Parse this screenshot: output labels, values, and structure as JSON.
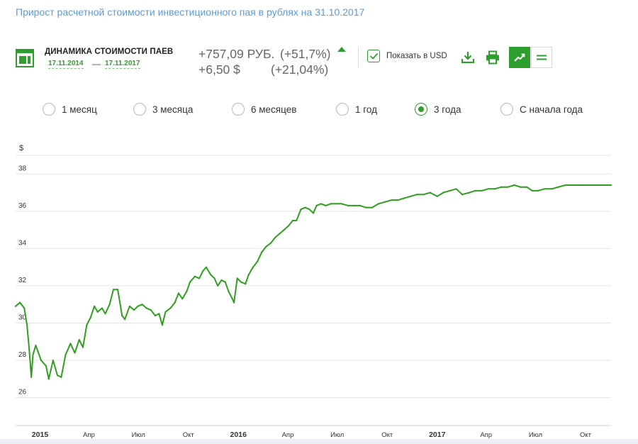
{
  "page": {
    "subtitle": "Прирост расчетной стоимости инвестиционного пая в рублях на 31.10.2017"
  },
  "header": {
    "title": "ДИНАМИКА СТОИМОСТИ ПАЕВ",
    "date_from": "17.11.2014",
    "date_separator": "—",
    "date_to": "17.11.2017",
    "perf_rub_abs": "+757,09 РУБ.",
    "perf_rub_pct": "(+51,7%)",
    "perf_usd_abs": "+6,50 $",
    "perf_usd_pct": "(+21,04%)",
    "trend_icon": "up-arrow-icon",
    "show_usd_label": "Показать в USD",
    "show_usd_checked": true,
    "tools": [
      "download-icon",
      "print-icon",
      "line-chart-icon",
      "table-view-icon"
    ],
    "active_view": "line-chart"
  },
  "periods": {
    "options": [
      "1 месяц",
      "3 месяца",
      "6 месяцев",
      "1 год",
      "3 года",
      "С начала года"
    ],
    "selected": "3 года"
  },
  "colors": {
    "accent": "#2e9e2e",
    "line": "#2f9e1f",
    "subtitle": "#5b9bd5",
    "grid": "#e4e4e4"
  },
  "chart_data": {
    "type": "line",
    "ylabel": "$",
    "grid": true,
    "ylim": [
      24.5,
      39
    ],
    "yticks": [
      26,
      28,
      30,
      32,
      34,
      36,
      38
    ],
    "xlim": [
      "2014-11-17",
      "2017-11-17"
    ],
    "xticks": [
      {
        "date": "2015-01-01",
        "label": "2015",
        "bold": true
      },
      {
        "date": "2015-04-01",
        "label": "Апр",
        "bold": false
      },
      {
        "date": "2015-07-01",
        "label": "Июл",
        "bold": false
      },
      {
        "date": "2015-10-01",
        "label": "Окт",
        "bold": false
      },
      {
        "date": "2016-01-01",
        "label": "2016",
        "bold": true
      },
      {
        "date": "2016-04-01",
        "label": "Апр",
        "bold": false
      },
      {
        "date": "2016-07-01",
        "label": "Июл",
        "bold": false
      },
      {
        "date": "2016-10-01",
        "label": "Окт",
        "bold": false
      },
      {
        "date": "2017-01-01",
        "label": "2017",
        "bold": true
      },
      {
        "date": "2017-04-01",
        "label": "Апр",
        "bold": false
      },
      {
        "date": "2017-07-01",
        "label": "Июл",
        "bold": false
      },
      {
        "date": "2017-10-01",
        "label": "Окт",
        "bold": false
      }
    ],
    "series": [
      {
        "points": [
          [
            "2014-11-17",
            30.9
          ],
          [
            "2014-11-25",
            31.1
          ],
          [
            "2014-12-03",
            30.8
          ],
          [
            "2014-12-08",
            29.9
          ],
          [
            "2014-12-12",
            28.6
          ],
          [
            "2014-12-16",
            27.1
          ],
          [
            "2014-12-19",
            28.3
          ],
          [
            "2014-12-24",
            28.8
          ],
          [
            "2015-01-03",
            28.0
          ],
          [
            "2015-01-12",
            27.7
          ],
          [
            "2015-01-17",
            27.0
          ],
          [
            "2015-01-25",
            28.0
          ],
          [
            "2015-02-02",
            27.2
          ],
          [
            "2015-02-09",
            27.1
          ],
          [
            "2015-02-17",
            28.3
          ],
          [
            "2015-02-26",
            28.9
          ],
          [
            "2015-03-06",
            28.4
          ],
          [
            "2015-03-14",
            29.1
          ],
          [
            "2015-03-21",
            28.7
          ],
          [
            "2015-03-28",
            29.9
          ],
          [
            "2015-04-04",
            30.3
          ],
          [
            "2015-04-11",
            30.9
          ],
          [
            "2015-04-17",
            30.6
          ],
          [
            "2015-04-25",
            30.8
          ],
          [
            "2015-05-01",
            30.5
          ],
          [
            "2015-05-09",
            31.0
          ],
          [
            "2015-05-16",
            31.8
          ],
          [
            "2015-05-24",
            31.8
          ],
          [
            "2015-06-01",
            30.4
          ],
          [
            "2015-06-06",
            30.2
          ],
          [
            "2015-06-15",
            30.9
          ],
          [
            "2015-06-23",
            30.7
          ],
          [
            "2015-06-30",
            30.9
          ],
          [
            "2015-07-08",
            31.0
          ],
          [
            "2015-07-16",
            30.8
          ],
          [
            "2015-07-24",
            30.7
          ],
          [
            "2015-08-01",
            30.4
          ],
          [
            "2015-08-08",
            30.5
          ],
          [
            "2015-08-14",
            29.9
          ],
          [
            "2015-08-20",
            30.6
          ],
          [
            "2015-08-29",
            30.8
          ],
          [
            "2015-09-06",
            31.1
          ],
          [
            "2015-09-13",
            31.6
          ],
          [
            "2015-09-20",
            31.3
          ],
          [
            "2015-09-28",
            31.7
          ],
          [
            "2015-10-04",
            32.2
          ],
          [
            "2015-10-13",
            32.5
          ],
          [
            "2015-10-21",
            32.4
          ],
          [
            "2015-10-28",
            32.8
          ],
          [
            "2015-11-03",
            33.0
          ],
          [
            "2015-11-11",
            32.6
          ],
          [
            "2015-11-18",
            32.4
          ],
          [
            "2015-11-24",
            32.0
          ],
          [
            "2015-12-01",
            32.3
          ],
          [
            "2015-12-08",
            32.2
          ],
          [
            "2015-12-14",
            31.7
          ],
          [
            "2015-12-21",
            31.3
          ],
          [
            "2015-12-24",
            31.1
          ],
          [
            "2015-12-30",
            32.4
          ],
          [
            "2016-01-06",
            32.2
          ],
          [
            "2016-01-14",
            32.1
          ],
          [
            "2016-01-20",
            32.6
          ],
          [
            "2016-01-28",
            33.0
          ],
          [
            "2016-02-05",
            33.3
          ],
          [
            "2016-02-13",
            33.8
          ],
          [
            "2016-02-21",
            34.1
          ],
          [
            "2016-03-01",
            34.3
          ],
          [
            "2016-03-09",
            34.6
          ],
          [
            "2016-03-17",
            34.8
          ],
          [
            "2016-03-25",
            35.0
          ],
          [
            "2016-04-02",
            35.2
          ],
          [
            "2016-04-10",
            35.5
          ],
          [
            "2016-04-17",
            35.5
          ],
          [
            "2016-04-25",
            36.1
          ],
          [
            "2016-05-03",
            36.2
          ],
          [
            "2016-05-11",
            36.1
          ],
          [
            "2016-05-18",
            35.9
          ],
          [
            "2016-05-24",
            36.3
          ],
          [
            "2016-06-01",
            36.4
          ],
          [
            "2016-06-10",
            36.3
          ],
          [
            "2016-06-19",
            36.4
          ],
          [
            "2016-06-28",
            36.4
          ],
          [
            "2016-07-09",
            36.4
          ],
          [
            "2016-07-21",
            36.3
          ],
          [
            "2016-08-01",
            36.3
          ],
          [
            "2016-08-12",
            36.3
          ],
          [
            "2016-08-23",
            36.2
          ],
          [
            "2016-09-03",
            36.2
          ],
          [
            "2016-09-15",
            36.4
          ],
          [
            "2016-09-27",
            36.5
          ],
          [
            "2016-10-09",
            36.6
          ],
          [
            "2016-10-21",
            36.6
          ],
          [
            "2016-11-01",
            36.7
          ],
          [
            "2016-11-13",
            36.8
          ],
          [
            "2016-11-25",
            36.9
          ],
          [
            "2016-12-07",
            36.9
          ],
          [
            "2016-12-19",
            37.0
          ],
          [
            "2017-01-01",
            36.8
          ],
          [
            "2017-01-12",
            37.0
          ],
          [
            "2017-01-24",
            37.1
          ],
          [
            "2017-02-05",
            37.2
          ],
          [
            "2017-02-16",
            36.9
          ],
          [
            "2017-03-01",
            37.0
          ],
          [
            "2017-03-12",
            37.1
          ],
          [
            "2017-03-24",
            37.1
          ],
          [
            "2017-04-05",
            37.2
          ],
          [
            "2017-04-17",
            37.2
          ],
          [
            "2017-04-29",
            37.3
          ],
          [
            "2017-05-11",
            37.3
          ],
          [
            "2017-05-23",
            37.4
          ],
          [
            "2017-06-03",
            37.3
          ],
          [
            "2017-06-15",
            37.3
          ],
          [
            "2017-06-25",
            37.1
          ],
          [
            "2017-07-05",
            37.1
          ],
          [
            "2017-07-18",
            37.2
          ],
          [
            "2017-07-31",
            37.2
          ],
          [
            "2017-08-12",
            37.3
          ],
          [
            "2017-08-25",
            37.4
          ],
          [
            "2017-09-06",
            37.4
          ],
          [
            "2017-09-18",
            37.4
          ],
          [
            "2017-09-30",
            37.4
          ],
          [
            "2017-10-12",
            37.4
          ],
          [
            "2017-10-24",
            37.4
          ],
          [
            "2017-11-05",
            37.4
          ],
          [
            "2017-11-17",
            37.4
          ]
        ]
      }
    ]
  }
}
